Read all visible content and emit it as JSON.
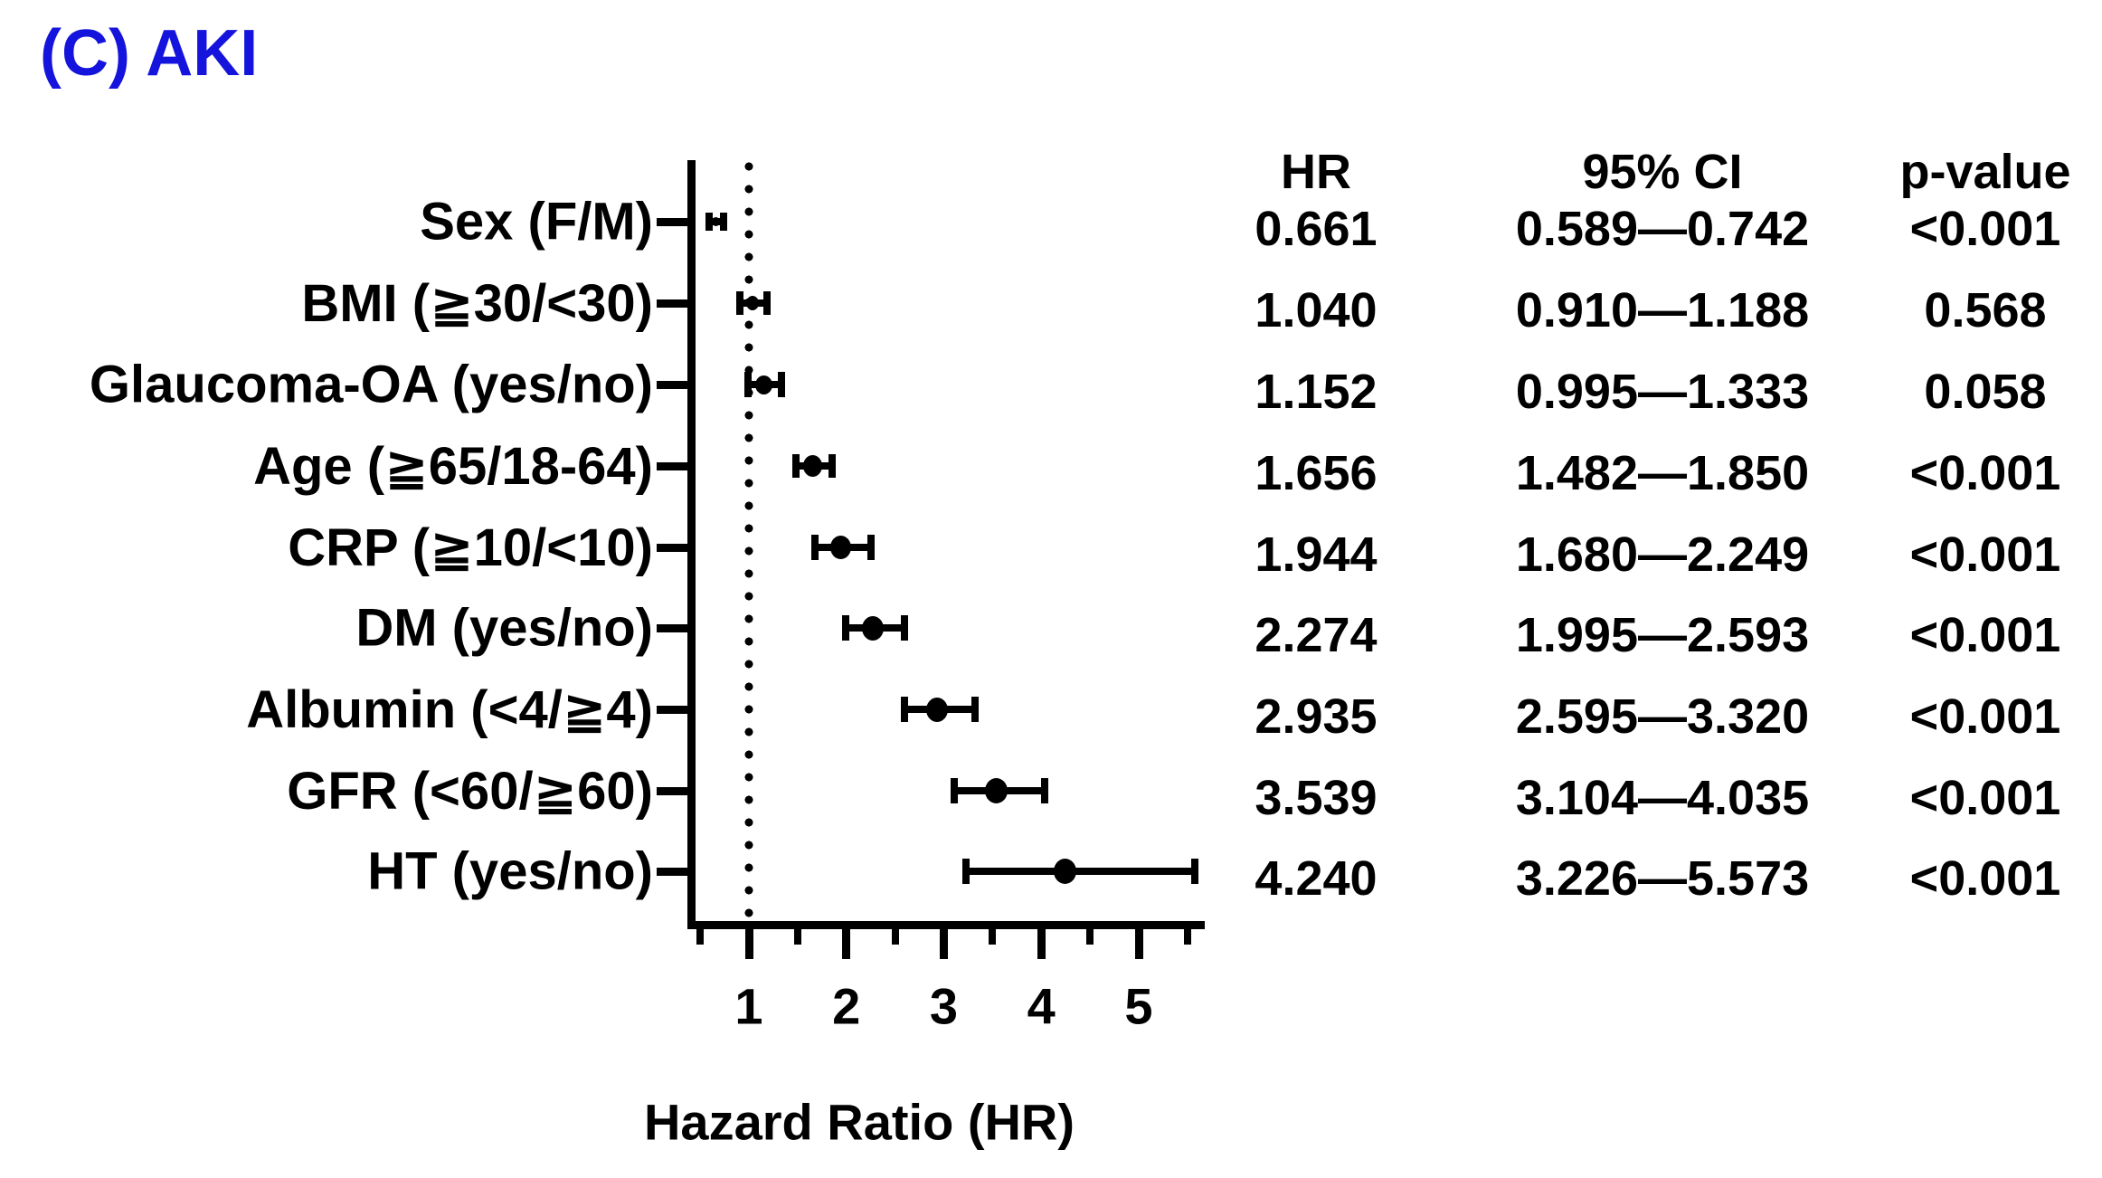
{
  "figure": {
    "title": "(C) AKI",
    "title_color": "#1414DC",
    "text_color": "#000000",
    "background": "#FFFFFF"
  },
  "axis": {
    "label": "Hazard Ratio (HR)",
    "major_ticks": [
      "1",
      "2",
      "3",
      "4",
      "5"
    ],
    "reference_line_hr": 1
  },
  "table": {
    "headers": {
      "hr": "HR",
      "ci": "95% CI",
      "p": "p-value"
    }
  },
  "rows": [
    {
      "label": "Sex (F/M)",
      "hr": "0.661",
      "ci": "0.589—0.742",
      "p": "<0.001"
    },
    {
      "label": "BMI (≧30/<30)",
      "hr": "1.040",
      "ci": "0.910—1.188",
      "p": "0.568"
    },
    {
      "label": "Glaucoma-OA (yes/no)",
      "hr": "1.152",
      "ci": "0.995—1.333",
      "p": "0.058"
    },
    {
      "label": "Age (≧65/18-64)",
      "hr": "1.656",
      "ci": "1.482—1.850",
      "p": "<0.001"
    },
    {
      "label": "CRP (≧10/<10)",
      "hr": "1.944",
      "ci": "1.680—2.249",
      "p": "<0.001"
    },
    {
      "label": "DM (yes/no)",
      "hr": "2.274",
      "ci": "1.995—2.593",
      "p": "<0.001"
    },
    {
      "label": "Albumin (<4/≧4)",
      "hr": "2.935",
      "ci": "2.595—3.320",
      "p": "<0.001"
    },
    {
      "label": "GFR (<60/≧60)",
      "hr": "3.539",
      "ci": "3.104—4.035",
      "p": "<0.001"
    },
    {
      "label": "HT (yes/no)",
      "hr": "4.240",
      "ci": "3.226—5.573",
      "p": "<0.001"
    }
  ],
  "chart_data": {
    "type": "forest",
    "title": "(C) AKI",
    "xlabel": "Hazard Ratio (HR)",
    "x_ticks": [
      1,
      2,
      3,
      4,
      5
    ],
    "x_minor_ticks": [
      0.5,
      1.5,
      2.5,
      3.5,
      4.5,
      5.5
    ],
    "x_range": [
      0.4,
      5.67
    ],
    "reference_line": 1.0,
    "grid": false,
    "legend": false,
    "categories": [
      "Sex (F/M)",
      "BMI (≧30/<30)",
      "Glaucoma-OA (yes/no)",
      "Age (≧65/18-64)",
      "CRP (≧10/<10)",
      "DM (yes/no)",
      "Albumin (<4/≧4)",
      "GFR (<60/≧60)",
      "HT (yes/no)"
    ],
    "series": [
      {
        "name": "HR",
        "values": [
          0.661,
          1.04,
          1.152,
          1.656,
          1.944,
          2.274,
          2.935,
          3.539,
          4.24
        ]
      },
      {
        "name": "CI_lower",
        "values": [
          0.589,
          0.91,
          0.995,
          1.482,
          1.68,
          1.995,
          2.595,
          3.104,
          3.226
        ]
      },
      {
        "name": "CI_upper",
        "values": [
          0.742,
          1.188,
          1.333,
          1.85,
          2.249,
          2.593,
          3.32,
          4.035,
          5.573
        ]
      },
      {
        "name": "p_value",
        "values": [
          "<0.001",
          "0.568",
          "0.058",
          "<0.001",
          "<0.001",
          "<0.001",
          "<0.001",
          "<0.001",
          "<0.001"
        ]
      }
    ]
  }
}
